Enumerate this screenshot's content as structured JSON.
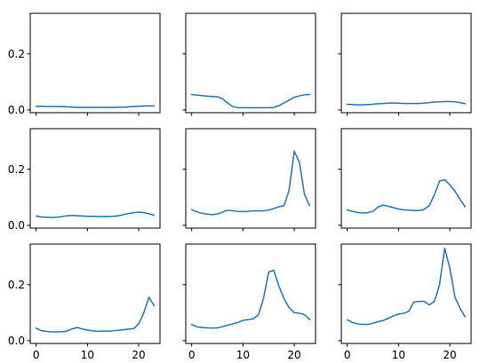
{
  "chart_data": {
    "type": "line",
    "layout": {
      "rows": 3,
      "cols": 3,
      "sharex": true,
      "sharey": true
    },
    "line_color": "#1f77b4",
    "xlim": [
      -1.15,
      24.15
    ],
    "ylim": [
      -0.01,
      0.345
    ],
    "xticks": [
      0,
      10,
      20
    ],
    "xtick_labels": [
      "0",
      "10",
      "20"
    ],
    "yticks": [
      0.0,
      0.2
    ],
    "ytick_labels": [
      "0.0",
      "0.2"
    ],
    "x": [
      0,
      1,
      2,
      3,
      4,
      5,
      6,
      7,
      8,
      9,
      10,
      11,
      12,
      13,
      14,
      15,
      16,
      17,
      18,
      19,
      20,
      21,
      22,
      23
    ],
    "panels": [
      {
        "values": [
          0.013,
          0.013,
          0.012,
          0.012,
          0.012,
          0.012,
          0.011,
          0.01,
          0.009,
          0.009,
          0.009,
          0.009,
          0.009,
          0.009,
          0.009,
          0.009,
          0.01,
          0.01,
          0.011,
          0.012,
          0.013,
          0.014,
          0.014,
          0.014
        ]
      },
      {
        "values": [
          0.055,
          0.053,
          0.051,
          0.049,
          0.048,
          0.047,
          0.04,
          0.025,
          0.012,
          0.008,
          0.008,
          0.008,
          0.008,
          0.008,
          0.008,
          0.008,
          0.009,
          0.015,
          0.025,
          0.035,
          0.045,
          0.05,
          0.054,
          0.055
        ]
      },
      {
        "values": [
          0.02,
          0.019,
          0.018,
          0.018,
          0.019,
          0.02,
          0.022,
          0.023,
          0.024,
          0.025,
          0.024,
          0.023,
          0.023,
          0.023,
          0.023,
          0.024,
          0.026,
          0.028,
          0.029,
          0.03,
          0.03,
          0.029,
          0.026,
          0.022
        ]
      },
      {
        "values": [
          0.033,
          0.03,
          0.029,
          0.028,
          0.029,
          0.031,
          0.034,
          0.035,
          0.034,
          0.033,
          0.032,
          0.032,
          0.031,
          0.031,
          0.031,
          0.032,
          0.034,
          0.038,
          0.042,
          0.045,
          0.047,
          0.045,
          0.041,
          0.036
        ]
      },
      {
        "values": [
          0.056,
          0.048,
          0.043,
          0.04,
          0.038,
          0.04,
          0.047,
          0.054,
          0.052,
          0.05,
          0.049,
          0.05,
          0.052,
          0.052,
          0.052,
          0.054,
          0.06,
          0.066,
          0.07,
          0.125,
          0.265,
          0.225,
          0.11,
          0.07
        ]
      },
      {
        "values": [
          0.055,
          0.05,
          0.046,
          0.044,
          0.045,
          0.05,
          0.065,
          0.072,
          0.068,
          0.063,
          0.058,
          0.055,
          0.054,
          0.053,
          0.053,
          0.057,
          0.07,
          0.11,
          0.158,
          0.163,
          0.145,
          0.122,
          0.092,
          0.066
        ]
      },
      {
        "values": [
          0.045,
          0.036,
          0.033,
          0.031,
          0.031,
          0.032,
          0.034,
          0.042,
          0.047,
          0.042,
          0.038,
          0.035,
          0.033,
          0.034,
          0.034,
          0.035,
          0.037,
          0.039,
          0.041,
          0.043,
          0.06,
          0.1,
          0.155,
          0.125
        ]
      },
      {
        "values": [
          0.058,
          0.05,
          0.047,
          0.046,
          0.045,
          0.046,
          0.05,
          0.055,
          0.06,
          0.065,
          0.073,
          0.075,
          0.078,
          0.092,
          0.15,
          0.245,
          0.252,
          0.195,
          0.15,
          0.118,
          0.1,
          0.098,
          0.093,
          0.075
        ]
      },
      {
        "values": [
          0.075,
          0.065,
          0.06,
          0.058,
          0.058,
          0.062,
          0.068,
          0.072,
          0.08,
          0.088,
          0.095,
          0.098,
          0.105,
          0.138,
          0.14,
          0.14,
          0.128,
          0.14,
          0.2,
          0.33,
          0.26,
          0.155,
          0.115,
          0.085
        ]
      }
    ]
  }
}
